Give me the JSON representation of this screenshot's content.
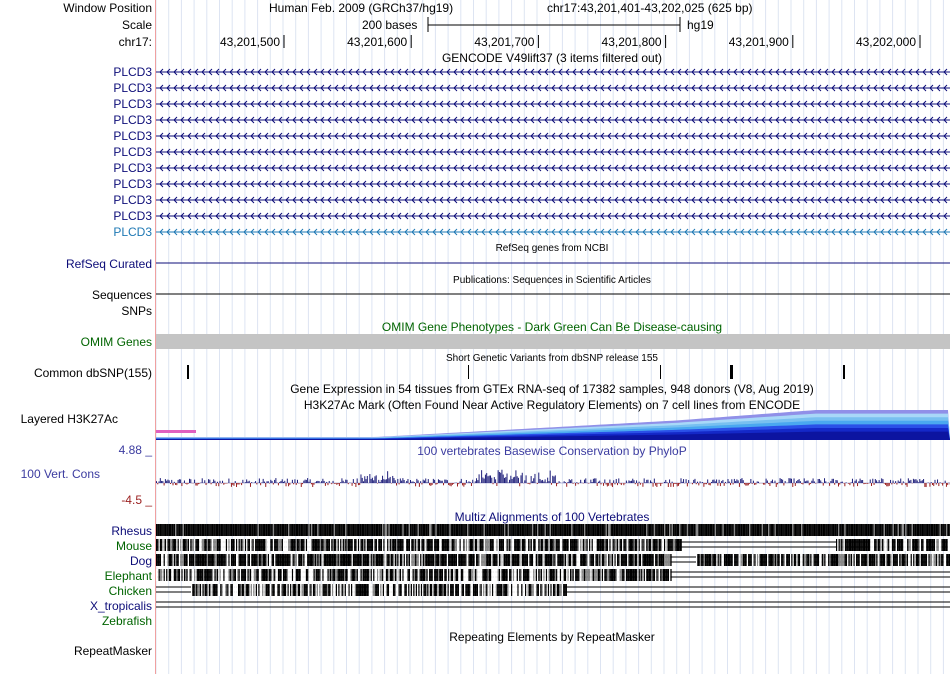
{
  "header": {
    "window_position_label": "Window Position",
    "scale_label": "Scale",
    "chrom_label": "chr17:",
    "assembly_text": "Human Feb. 2009 (GRCh37/hg19)",
    "position_text": "chr17:43,201,401-43,202,025 (625 bp)",
    "scale_text": "200 bases",
    "db_text": "hg19",
    "ruler_ticks": [
      "43,201,500",
      "43,201,600",
      "43,201,700",
      "43,201,800",
      "43,201,900",
      "43,202,000"
    ]
  },
  "tracks": {
    "gencode": {
      "title": "GENCODE V49lift37 (3 items filtered out)",
      "items": [
        "PLCD3",
        "PLCD3",
        "PLCD3",
        "PLCD3",
        "PLCD3",
        "PLCD3",
        "PLCD3",
        "PLCD3",
        "PLCD3",
        "PLCD3",
        "PLCD3"
      ],
      "color": "#0c0c78",
      "last_color": "#1e78b4"
    },
    "refseq": {
      "title": "RefSeq genes from NCBI",
      "label": "RefSeq Curated",
      "color": "#0c0c78"
    },
    "publications": {
      "title": "Publications: Sequences in Scientific Articles",
      "label": "Sequences"
    },
    "snps": {
      "label": "SNPs"
    },
    "omim": {
      "title": "OMIM Gene Phenotypes - Dark Green Can Be Disease-causing",
      "label": "OMIM Genes",
      "color": "#006400"
    },
    "dbsnp": {
      "title": "Short Genetic Variants from dbSNP release 155",
      "label": "Common dbSNP(155)"
    },
    "gtex": {
      "title": "Gene Expression in 54 tissues from GTEx RNA-seq of 17382 samples, 948 donors (V8, Aug 2019)"
    },
    "h3k27ac": {
      "title": "H3K27Ac Mark (Often Found Near Active Regulatory Elements) on 7 cell lines from ENCODE",
      "label": "Layered H3K27Ac"
    },
    "phylop": {
      "title": "100 vertebrates Basewise Conservation by PhyloP",
      "label": "100 Vert. Cons",
      "max_label": "4.88 _",
      "min_label": "-4.5 _",
      "color": "#3c3ca0",
      "pos_color": "#1e1e7a",
      "neg_color": "#9a1e1e"
    },
    "multiz": {
      "title": "Multiz Alignments of 100 Vertebrates",
      "species": [
        {
          "name": "Rhesus",
          "color": "#0c0c78"
        },
        {
          "name": "Mouse",
          "color": "#006400"
        },
        {
          "name": "Dog",
          "color": "#0c0c78"
        },
        {
          "name": "Elephant",
          "color": "#006400"
        },
        {
          "name": "Chicken",
          "color": "#006400"
        },
        {
          "name": "X_tropicalis",
          "color": "#0c0c78"
        },
        {
          "name": "Zebrafish",
          "color": "#006400"
        }
      ]
    },
    "repeatmasker": {
      "title": "Repeating Elements by RepeatMasker",
      "label": "RepeatMasker"
    }
  }
}
